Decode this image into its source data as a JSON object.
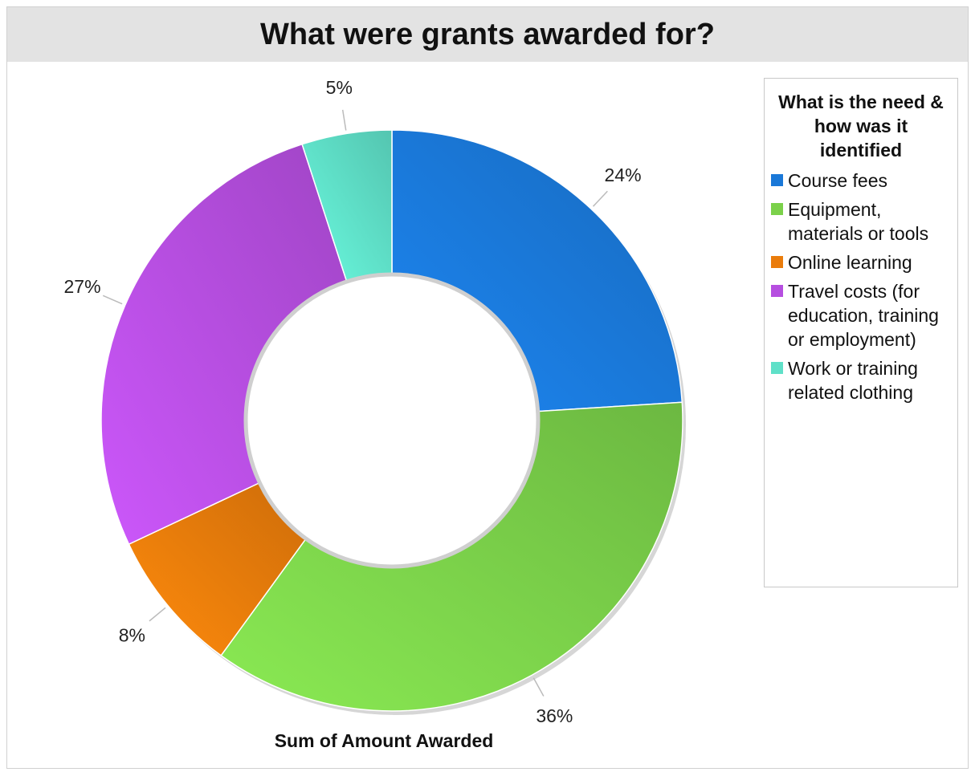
{
  "chart_data": {
    "type": "pie",
    "donut": true,
    "title": "What were grants awarded for?",
    "caption": "Sum of Amount Awarded",
    "legend": {
      "title": "What is the need & how was it identified",
      "position": "right"
    },
    "categories": [
      "Course fees",
      "Equipment, materials or tools",
      "Online learning",
      "Travel costs (for education, training or employment)",
      "Work or training related clothing"
    ],
    "values": [
      24,
      36,
      8,
      27,
      5
    ],
    "labels": [
      "24%",
      "36%",
      "8%",
      "27%",
      "5%"
    ],
    "colors": [
      "#1a78d8",
      "#7bd14a",
      "#ea7c0b",
      "#b64ee0",
      "#5fe0c8"
    ]
  }
}
